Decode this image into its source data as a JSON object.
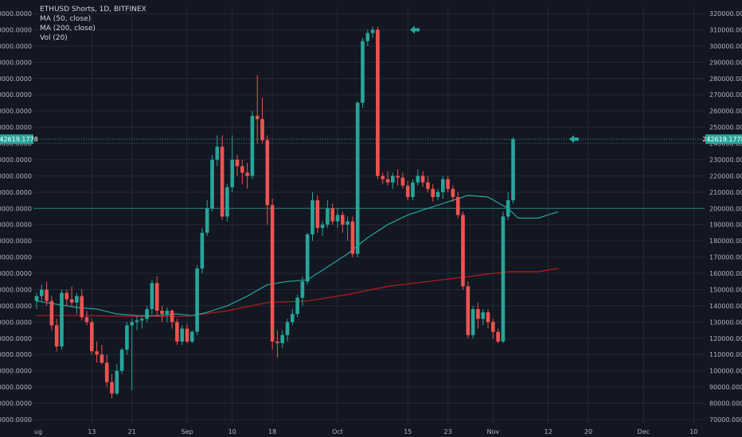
{
  "legend": {
    "title": "ETHUSD Shorts, 1D, BITFINEX",
    "ma50": "MA (50, close)",
    "ma200": "MA (200, close)",
    "vol": "Vol (20)"
  },
  "colors": {
    "background": "#131722",
    "grid": "#252a36",
    "up": "#26a69a",
    "down": "#ef5350",
    "ma50": "#26a69a",
    "ma200": "#b71c1c",
    "price_label_bg": "#26a69a",
    "text": "#b2b5be"
  },
  "chart_data": {
    "type": "candlestick",
    "y_axis": {
      "min": 70000,
      "max": 320000,
      "ticks": [
        "320000.0000",
        "310000.0000",
        "300000.0000",
        "290000.0000",
        "280000.0000",
        "270000.0000",
        "260000.0000",
        "250000.0000",
        "240000.0000",
        "230000.0000",
        "220000.0000",
        "210000.0000",
        "200000.0000",
        "190000.0000",
        "180000.0000",
        "170000.0000",
        "160000.0000",
        "150000.0000",
        "140000.0000",
        "130000.0000",
        "120000.0000",
        "110000.0000",
        "100000.0000",
        "90000.0000",
        "80000.0000",
        "70000.0000"
      ],
      "tick_values": [
        320000,
        310000,
        300000,
        290000,
        280000,
        270000,
        260000,
        250000,
        240000,
        230000,
        220000,
        210000,
        200000,
        190000,
        180000,
        170000,
        160000,
        150000,
        140000,
        130000,
        120000,
        110000,
        100000,
        90000,
        80000,
        70000
      ]
    },
    "x_axis": {
      "labels": [
        {
          "text": "ug",
          "index": -1
        },
        {
          "text": "13",
          "index": 11
        },
        {
          "text": "21",
          "index": 19
        },
        {
          "text": "Sep",
          "index": 30
        },
        {
          "text": "10",
          "index": 39
        },
        {
          "text": "18",
          "index": 47
        },
        {
          "text": "Oct",
          "index": 60
        },
        {
          "text": "15",
          "index": 74
        },
        {
          "text": "23",
          "index": 82
        },
        {
          "text": "Nov",
          "index": 91
        },
        {
          "text": "12",
          "index": 102
        },
        {
          "text": "20",
          "index": 110
        },
        {
          "text": "Dec",
          "index": 121
        },
        {
          "text": "10",
          "index": 131
        }
      ]
    },
    "last_price": 242619.1778,
    "last_price_label": "242619.1778",
    "marker_levels": [
      310000,
      242619
    ],
    "horizontal_level": 200000,
    "candles": [
      [
        143000,
        148000,
        138000,
        146000
      ],
      [
        146000,
        153000,
        143000,
        150000
      ],
      [
        150000,
        155000,
        140000,
        143000
      ],
      [
        143000,
        146000,
        125000,
        128000
      ],
      [
        128000,
        132000,
        112000,
        115000
      ],
      [
        115000,
        150000,
        113000,
        148000
      ],
      [
        148000,
        150000,
        140000,
        144000
      ],
      [
        144000,
        152000,
        140000,
        142000
      ],
      [
        142000,
        148000,
        135000,
        146000
      ],
      [
        146000,
        150000,
        131000,
        133000
      ],
      [
        133000,
        137000,
        128000,
        130000
      ],
      [
        130000,
        132000,
        110000,
        112000
      ],
      [
        112000,
        118000,
        105000,
        110000
      ],
      [
        110000,
        116000,
        104000,
        105000
      ],
      [
        105000,
        110000,
        90000,
        93000
      ],
      [
        93000,
        98000,
        83000,
        86000
      ],
      [
        86000,
        104000,
        85000,
        100000
      ],
      [
        100000,
        114000,
        98000,
        113000
      ],
      [
        113000,
        130000,
        110000,
        128000
      ],
      [
        128000,
        132000,
        88000,
        130000
      ],
      [
        130000,
        134000,
        125000,
        131000
      ],
      [
        131000,
        134000,
        126000,
        132000
      ],
      [
        132000,
        140000,
        130000,
        138000
      ],
      [
        138000,
        156000,
        135000,
        154000
      ],
      [
        154000,
        158000,
        134000,
        137000
      ],
      [
        137000,
        140000,
        130000,
        135000
      ],
      [
        135000,
        139000,
        130000,
        137000
      ],
      [
        137000,
        138000,
        126000,
        130000
      ],
      [
        130000,
        132000,
        116000,
        118000
      ],
      [
        118000,
        128000,
        116000,
        126000
      ],
      [
        126000,
        129000,
        117000,
        118000
      ],
      [
        118000,
        125000,
        117000,
        124000
      ],
      [
        124000,
        165000,
        122000,
        163000
      ],
      [
        163000,
        188000,
        160000,
        185000
      ],
      [
        185000,
        205000,
        183000,
        200000
      ],
      [
        200000,
        233000,
        198000,
        230000
      ],
      [
        230000,
        245000,
        226000,
        238000
      ],
      [
        238000,
        245000,
        193000,
        195000
      ],
      [
        195000,
        215000,
        192000,
        213000
      ],
      [
        213000,
        245000,
        210000,
        230000
      ],
      [
        230000,
        233000,
        220000,
        226000
      ],
      [
        226000,
        230000,
        215000,
        222000
      ],
      [
        222000,
        228000,
        212000,
        220000
      ],
      [
        220000,
        260000,
        218000,
        257000
      ],
      [
        257000,
        282000,
        240000,
        255000
      ],
      [
        255000,
        268000,
        240000,
        242000
      ],
      [
        242000,
        245000,
        190000,
        202000
      ],
      [
        202000,
        206000,
        113000,
        118000
      ],
      [
        118000,
        125000,
        108000,
        117000
      ],
      [
        117000,
        125000,
        114000,
        122000
      ],
      [
        122000,
        132000,
        118000,
        130000
      ],
      [
        130000,
        138000,
        128000,
        135000
      ],
      [
        135000,
        147000,
        133000,
        145000
      ],
      [
        145000,
        158000,
        140000,
        155000
      ],
      [
        155000,
        185000,
        153000,
        184000
      ],
      [
        184000,
        210000,
        180000,
        205000
      ],
      [
        205000,
        208000,
        185000,
        188000
      ],
      [
        188000,
        192000,
        183000,
        190000
      ],
      [
        190000,
        205000,
        188000,
        200000
      ],
      [
        200000,
        203000,
        190000,
        192000
      ],
      [
        192000,
        200000,
        188000,
        196000
      ],
      [
        196000,
        198000,
        185000,
        190000
      ],
      [
        190000,
        195000,
        180000,
        192000
      ],
      [
        192000,
        195000,
        170000,
        172000
      ],
      [
        172000,
        266000,
        170000,
        265000
      ],
      [
        265000,
        305000,
        262000,
        303000
      ],
      [
        303000,
        310000,
        300000,
        308000
      ],
      [
        308000,
        312000,
        305000,
        310000
      ],
      [
        310000,
        312000,
        218000,
        220000
      ],
      [
        220000,
        222000,
        215000,
        218000
      ],
      [
        218000,
        223000,
        214000,
        216000
      ],
      [
        216000,
        222000,
        212000,
        220000
      ],
      [
        220000,
        224000,
        214000,
        219000
      ],
      [
        219000,
        222000,
        212000,
        214000
      ],
      [
        214000,
        217000,
        205000,
        207000
      ],
      [
        207000,
        218000,
        205000,
        216000
      ],
      [
        216000,
        224000,
        214000,
        220000
      ],
      [
        220000,
        223000,
        213000,
        216000
      ],
      [
        216000,
        220000,
        210000,
        212000
      ],
      [
        212000,
        215000,
        204000,
        207000
      ],
      [
        207000,
        212000,
        205000,
        210000
      ],
      [
        210000,
        220000,
        206000,
        218000
      ],
      [
        218000,
        220000,
        210000,
        212000
      ],
      [
        212000,
        214000,
        204000,
        207000
      ],
      [
        207000,
        210000,
        194000,
        196000
      ],
      [
        196000,
        198000,
        150000,
        152000
      ],
      [
        152000,
        155000,
        120000,
        122000
      ],
      [
        122000,
        140000,
        120000,
        138000
      ],
      [
        138000,
        142000,
        126000,
        132000
      ],
      [
        132000,
        138000,
        128000,
        136000
      ],
      [
        136000,
        138000,
        126000,
        130000
      ],
      [
        130000,
        132000,
        120000,
        124000
      ],
      [
        124000,
        126000,
        117000,
        118000
      ],
      [
        118000,
        198000,
        117000,
        195000
      ],
      [
        195000,
        210000,
        193000,
        205000
      ],
      [
        205000,
        244000,
        203000,
        242619
      ]
    ],
    "ma50": [
      [
        0,
        143000
      ],
      [
        4,
        141000
      ],
      [
        8,
        139000
      ],
      [
        12,
        138000
      ],
      [
        16,
        135000
      ],
      [
        20,
        134000
      ],
      [
        24,
        134000
      ],
      [
        28,
        135000
      ],
      [
        31,
        134000
      ],
      [
        34,
        136000
      ],
      [
        38,
        140000
      ],
      [
        42,
        146000
      ],
      [
        46,
        153000
      ],
      [
        50,
        155000
      ],
      [
        54,
        156000
      ],
      [
        58,
        164000
      ],
      [
        62,
        172000
      ],
      [
        66,
        182000
      ],
      [
        70,
        190000
      ],
      [
        74,
        196000
      ],
      [
        78,
        200000
      ],
      [
        82,
        204000
      ],
      [
        86,
        208000
      ],
      [
        90,
        207000
      ],
      [
        94,
        200000
      ],
      [
        96,
        194000
      ],
      [
        100,
        194000
      ],
      [
        104,
        198000
      ]
    ],
    "ma200": [
      [
        0,
        134000
      ],
      [
        10,
        134000
      ],
      [
        20,
        133500
      ],
      [
        30,
        133500
      ],
      [
        38,
        137000
      ],
      [
        46,
        142000
      ],
      [
        54,
        143000
      ],
      [
        62,
        147000
      ],
      [
        70,
        152000
      ],
      [
        78,
        155000
      ],
      [
        86,
        158000
      ],
      [
        94,
        161000
      ],
      [
        100,
        161000
      ],
      [
        104,
        163000
      ]
    ]
  }
}
